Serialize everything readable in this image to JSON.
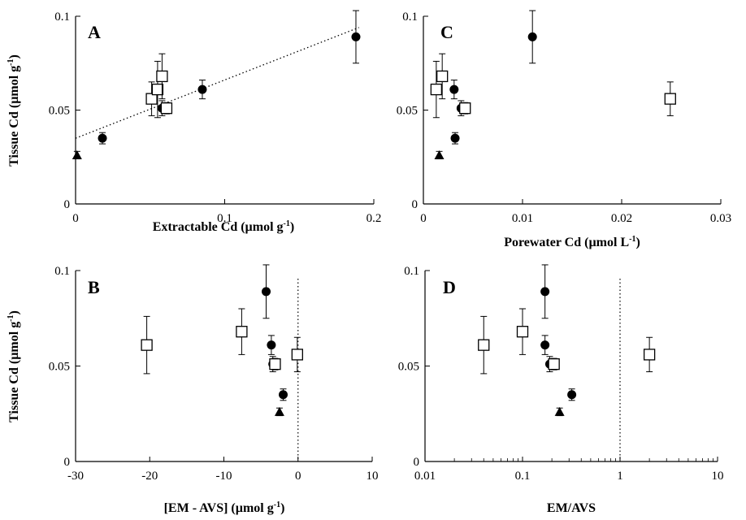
{
  "chart_data": [
    {
      "type": "scatter",
      "panel": "A",
      "xlabel": "Extractable Cd (µmol g⁻¹)",
      "ylabel": "Tissue Cd (µmol g⁻¹)",
      "xscale": "linear",
      "xlim": [
        0,
        0.2
      ],
      "ylim": [
        0,
        0.1
      ],
      "xticks": [
        "0",
        "0.1",
        "0.2"
      ],
      "yticks": [
        "0",
        "0.05",
        "0.1"
      ],
      "trendline": {
        "style": "dotted",
        "points": [
          [
            0,
            0.035
          ],
          [
            0.19,
            0.094
          ]
        ]
      },
      "series": [
        {
          "marker": "circle",
          "points": [
            {
              "x": 0.018,
              "y": 0.035,
              "err": 0.003
            },
            {
              "x": 0.058,
              "y": 0.051,
              "err": 0.004
            },
            {
              "x": 0.085,
              "y": 0.061,
              "err": 0.005
            },
            {
              "x": 0.188,
              "y": 0.089,
              "err": 0.014
            }
          ]
        },
        {
          "marker": "square",
          "points": [
            {
              "x": 0.051,
              "y": 0.056,
              "err": 0.009
            },
            {
              "x": 0.055,
              "y": 0.061,
              "err": 0.015
            },
            {
              "x": 0.058,
              "y": 0.068,
              "err": 0.012
            },
            {
              "x": 0.061,
              "y": 0.051,
              "err": 0.003
            }
          ]
        },
        {
          "marker": "triangle",
          "points": [
            {
              "x": 0.001,
              "y": 0.026,
              "err": 0.002
            }
          ]
        }
      ]
    },
    {
      "type": "scatter",
      "panel": "C",
      "xlabel": "Porewater Cd (µmol L⁻¹)",
      "ylabel": "",
      "xscale": "linear",
      "xlim": [
        0,
        0.03
      ],
      "ylim": [
        0,
        0.1
      ],
      "xticks": [
        "0",
        "0.01",
        "0.02",
        "0.03"
      ],
      "yticks": [
        "0",
        "0.05",
        "0.1"
      ],
      "series": [
        {
          "marker": "circle",
          "points": [
            {
              "x": 0.0031,
              "y": 0.061,
              "err": 0.005
            },
            {
              "x": 0.0032,
              "y": 0.035,
              "err": 0.003
            },
            {
              "x": 0.0038,
              "y": 0.051,
              "err": 0.004
            },
            {
              "x": 0.011,
              "y": 0.089,
              "err": 0.014
            }
          ]
        },
        {
          "marker": "square",
          "points": [
            {
              "x": 0.0013,
              "y": 0.061,
              "err": 0.015
            },
            {
              "x": 0.0019,
              "y": 0.068,
              "err": 0.012
            },
            {
              "x": 0.0042,
              "y": 0.051,
              "err": 0.003
            },
            {
              "x": 0.0249,
              "y": 0.056,
              "err": 0.009
            }
          ]
        },
        {
          "marker": "triangle",
          "points": [
            {
              "x": 0.0016,
              "y": 0.026,
              "err": 0.002
            }
          ]
        }
      ]
    },
    {
      "type": "scatter",
      "panel": "B",
      "xlabel": "[EM - AVS] (µmol g⁻¹)",
      "ylabel": "Tissue Cd (µmol g⁻¹)",
      "xscale": "linear",
      "xlim": [
        -30,
        10
      ],
      "ylim": [
        0,
        0.1
      ],
      "xticks": [
        "-30",
        "-20",
        "-10",
        "0",
        "10"
      ],
      "yticks": [
        "0",
        "0.05",
        "0.1"
      ],
      "reference_line_x": 0,
      "series": [
        {
          "marker": "circle",
          "points": [
            {
              "x": -4.3,
              "y": 0.089,
              "err": 0.014
            },
            {
              "x": -3.6,
              "y": 0.061,
              "err": 0.005
            },
            {
              "x": -3.4,
              "y": 0.051,
              "err": 0.004
            },
            {
              "x": -2.0,
              "y": 0.035,
              "err": 0.003
            }
          ]
        },
        {
          "marker": "square",
          "points": [
            {
              "x": -20.4,
              "y": 0.061,
              "err": 0.015
            },
            {
              "x": -7.6,
              "y": 0.068,
              "err": 0.012
            },
            {
              "x": -3.1,
              "y": 0.051,
              "err": 0.003
            },
            {
              "x": -0.1,
              "y": 0.056,
              "err": 0.009
            }
          ]
        },
        {
          "marker": "triangle",
          "points": [
            {
              "x": -2.5,
              "y": 0.026,
              "err": 0.002
            }
          ]
        }
      ]
    },
    {
      "type": "scatter",
      "panel": "D",
      "xlabel": "EM/AVS",
      "ylabel": "",
      "xscale": "log",
      "xlim": [
        0.01,
        10
      ],
      "ylim": [
        0,
        0.1
      ],
      "xticks": [
        "0.01",
        "0.1",
        "1",
        "10"
      ],
      "yticks": [
        "0",
        "0.05",
        "0.1"
      ],
      "reference_line_x": 1,
      "series": [
        {
          "marker": "circle",
          "points": [
            {
              "x": 0.17,
              "y": 0.089,
              "err": 0.014
            },
            {
              "x": 0.17,
              "y": 0.061,
              "err": 0.005
            },
            {
              "x": 0.19,
              "y": 0.051,
              "err": 0.004
            },
            {
              "x": 0.32,
              "y": 0.035,
              "err": 0.003
            }
          ]
        },
        {
          "marker": "square",
          "points": [
            {
              "x": 0.04,
              "y": 0.061,
              "err": 0.015
            },
            {
              "x": 0.1,
              "y": 0.068,
              "err": 0.012
            },
            {
              "x": 0.21,
              "y": 0.051,
              "err": 0.003
            },
            {
              "x": 2.0,
              "y": 0.056,
              "err": 0.009
            }
          ]
        },
        {
          "marker": "triangle",
          "points": [
            {
              "x": 0.24,
              "y": 0.026,
              "err": 0.002
            }
          ]
        }
      ]
    }
  ]
}
